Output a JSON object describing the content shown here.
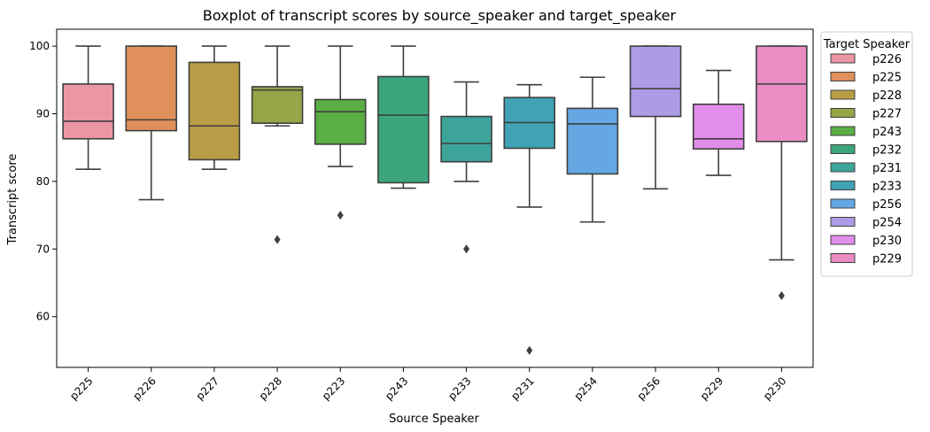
{
  "chart_data": {
    "type": "boxplot",
    "title": "Boxplot of transcript scores by source_speaker and target_speaker",
    "xlabel": "Source Speaker",
    "ylabel": "Transcript score",
    "ylim": [
      52.5,
      102.5
    ],
    "yticks": [
      60,
      70,
      80,
      90,
      100
    ],
    "grid": false,
    "legend": {
      "title": "Target Speaker",
      "placement": "outside-top-right",
      "entries": [
        "p226",
        "p225",
        "p228",
        "p227",
        "p243",
        "p232",
        "p231",
        "p233",
        "p256",
        "p254",
        "p230",
        "p229"
      ]
    },
    "colors": [
      "#ea96a3",
      "#e0905a",
      "#b89d46",
      "#97a448",
      "#59ae44",
      "#3ba67c",
      "#3da49a",
      "#3fa3b5",
      "#64a7e2",
      "#ad9ce5",
      "#e28de9",
      "#e98dc3"
    ],
    "categories": [
      "p225",
      "p226",
      "p227",
      "p228",
      "p223",
      "p243",
      "p233",
      "p231",
      "p254",
      "p256",
      "p229",
      "p230"
    ],
    "boxes": [
      {
        "source": "p225",
        "target": "p226",
        "whisker_low": 81.8,
        "q1": 86.3,
        "median": 88.9,
        "q3": 94.4,
        "whisker_high": 100,
        "outliers": []
      },
      {
        "source": "p226",
        "target": "p225",
        "whisker_low": 77.3,
        "q1": 87.5,
        "median": 89.1,
        "q3": 100,
        "whisker_high": 100,
        "outliers": []
      },
      {
        "source": "p227",
        "target": "p228",
        "whisker_low": 81.8,
        "q1": 83.2,
        "median": 88.2,
        "q3": 97.6,
        "whisker_high": 100,
        "outliers": []
      },
      {
        "source": "p228",
        "target": "p227",
        "whisker_low": 88.2,
        "q1": 88.6,
        "median": 93.5,
        "q3": 94.0,
        "whisker_high": 100,
        "outliers": [
          71.4
        ]
      },
      {
        "source": "p223",
        "target": "p243",
        "whisker_low": 82.2,
        "q1": 85.5,
        "median": 90.3,
        "q3": 92.1,
        "whisker_high": 100,
        "outliers": [
          75.0
        ]
      },
      {
        "source": "p243",
        "target": "p232",
        "whisker_low": 79.0,
        "q1": 79.8,
        "median": 89.8,
        "q3": 95.5,
        "whisker_high": 100,
        "outliers": []
      },
      {
        "source": "p233",
        "target": "p231",
        "whisker_low": 80.0,
        "q1": 82.9,
        "median": 85.6,
        "q3": 89.6,
        "whisker_high": 94.7,
        "outliers": [
          70.0
        ]
      },
      {
        "source": "p231",
        "target": "p233",
        "whisker_low": 76.2,
        "q1": 84.9,
        "median": 88.7,
        "q3": 92.4,
        "whisker_high": 94.3,
        "outliers": [
          55.0
        ]
      },
      {
        "source": "p254",
        "target": "p256",
        "whisker_low": 74.0,
        "q1": 81.1,
        "median": 88.5,
        "q3": 90.8,
        "whisker_high": 95.4,
        "outliers": []
      },
      {
        "source": "p256",
        "target": "p254",
        "whisker_low": 78.9,
        "q1": 89.6,
        "median": 93.7,
        "q3": 100,
        "whisker_high": 100,
        "outliers": []
      },
      {
        "source": "p229",
        "target": "p230",
        "whisker_low": 80.9,
        "q1": 84.8,
        "median": 86.3,
        "q3": 91.4,
        "whisker_high": 96.4,
        "outliers": []
      },
      {
        "source": "p230",
        "target": "p229",
        "whisker_low": 68.4,
        "q1": 85.9,
        "median": 94.4,
        "q3": 100,
        "whisker_high": 100,
        "outliers": [
          63.1
        ]
      }
    ]
  }
}
